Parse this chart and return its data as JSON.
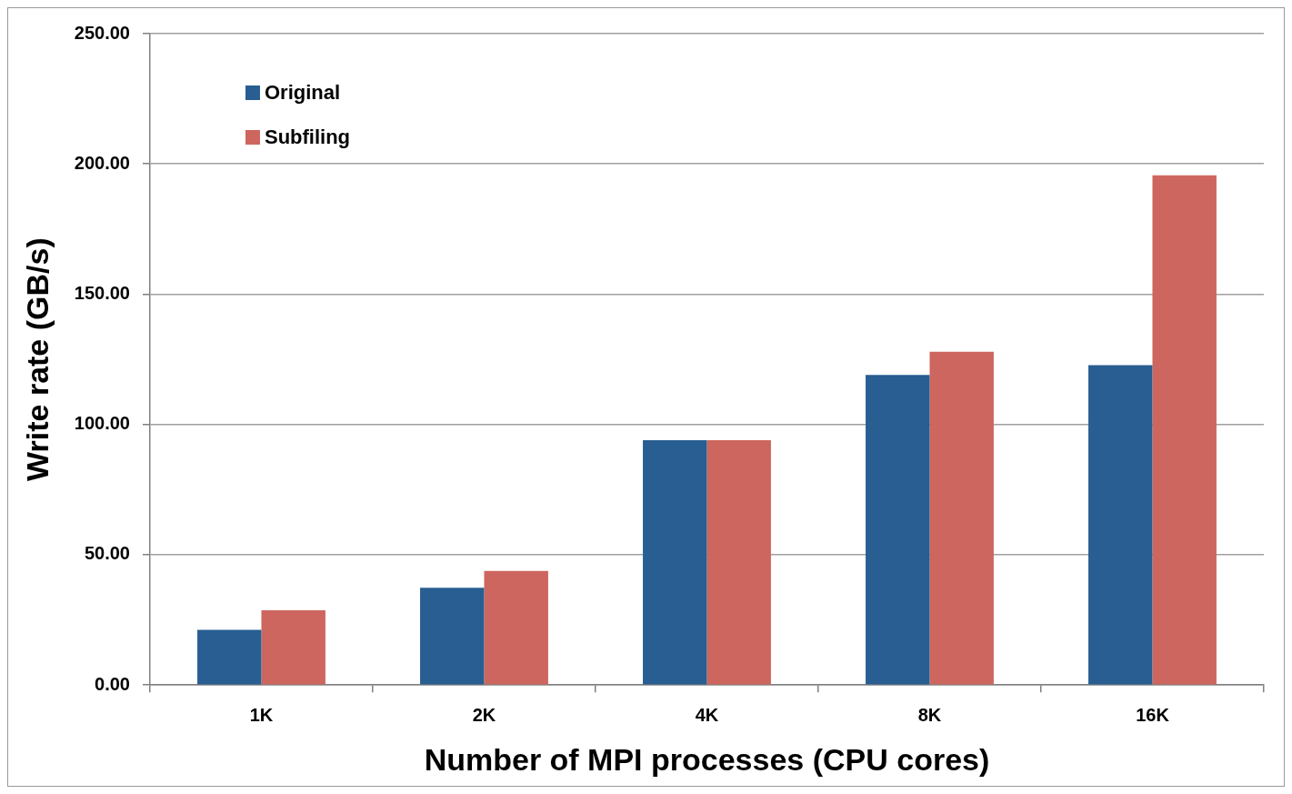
{
  "chart_data": {
    "type": "bar",
    "xlabel": "Number of MPI processes (CPU cores)",
    "ylabel": "Write rate (GB/s)",
    "categories": [
      "1K",
      "2K",
      "4K",
      "8K",
      "16K"
    ],
    "series": [
      {
        "name": "Original",
        "color": "#285e91",
        "values": [
          21.2,
          37.3,
          94.0,
          119.0,
          122.8
        ]
      },
      {
        "name": "Subfiling",
        "color": "#cd665e",
        "values": [
          28.7,
          43.8,
          94.0,
          127.9,
          195.6
        ]
      }
    ],
    "ylim": [
      0,
      250
    ],
    "yticks": [
      {
        "value": 0,
        "label": "0.00"
      },
      {
        "value": 50,
        "label": "50.00"
      },
      {
        "value": 100,
        "label": "100.00"
      },
      {
        "value": 150,
        "label": "150.00"
      },
      {
        "value": 200,
        "label": "200.00"
      },
      {
        "value": 250,
        "label": "250.00"
      }
    ],
    "grid": "y",
    "legend": "top left"
  }
}
